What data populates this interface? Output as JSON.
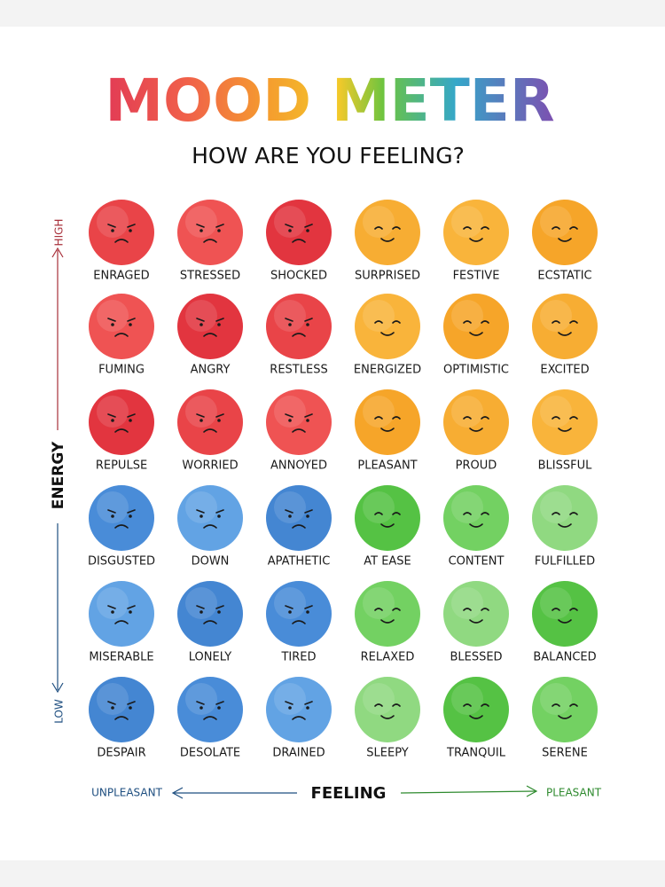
{
  "title": "MOOD METER",
  "subtitle": "HOW ARE YOU FEELING?",
  "grid": {
    "rows": [
      [
        "ENRAGED",
        "STRESSED",
        "SHOCKED",
        "SURPRISED",
        "FESTIVE",
        "ECSTATIC"
      ],
      [
        "FUMING",
        "ANGRY",
        "RESTLESS",
        "ENERGIZED",
        "OPTIMISTIC",
        "EXCITED"
      ],
      [
        "REPULSE",
        "WORRIED",
        "ANNOYED",
        "PLEASANT",
        "PROUD",
        "BLISSFUL"
      ],
      [
        "DISGUSTED",
        "DOWN",
        "APATHETIC",
        "AT EASE",
        "CONTENT",
        "FULFILLED"
      ],
      [
        "MISERABLE",
        "LONELY",
        "TIRED",
        "RELAXED",
        "BLESSED",
        "BALANCED"
      ],
      [
        "DESPAIR",
        "DESOLATE",
        "DRAINED",
        "SLEEPY",
        "TRANQUIL",
        "SERENE"
      ]
    ]
  },
  "axes": {
    "high": "HIGH",
    "energy": "ENERGY",
    "low": "LOW",
    "unpleasant": "UNPLEASANT",
    "feeling": "FEELING",
    "pleasant": "PLEASANT"
  }
}
